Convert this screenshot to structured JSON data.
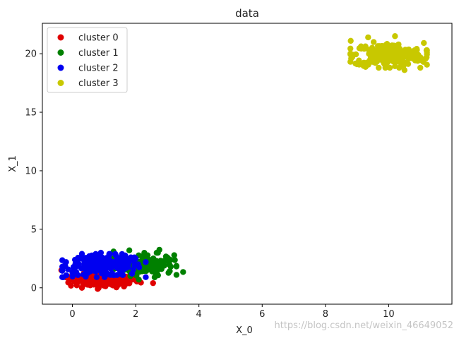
{
  "chart_data": {
    "type": "scatter",
    "title": "data",
    "xlabel": "X_0",
    "ylabel": "X_1",
    "xlim": [
      -0.95,
      12.0
    ],
    "ylim": [
      -1.4,
      22.6
    ],
    "xticks": [
      0,
      2,
      4,
      6,
      8,
      10
    ],
    "yticks": [
      0,
      5,
      10,
      15,
      20
    ],
    "grid": false,
    "legend_position": "top-left",
    "series": [
      {
        "name": "cluster 0",
        "color": "#e00000",
        "center": [
          1.0,
          0.6
        ],
        "spread": [
          0.55,
          0.28
        ],
        "count": 140,
        "x": [
          -0.35,
          2.55,
          0.3,
          1.6,
          0.8,
          1.2,
          0.1,
          1.9
        ],
        "y": [
          1.5,
          0.4,
          0.0,
          0.3,
          -0.1,
          0.9,
          1.2,
          0.7
        ]
      },
      {
        "name": "cluster 1",
        "color": "#008000",
        "center": [
          2.3,
          2.0
        ],
        "spread": [
          0.45,
          0.45
        ],
        "count": 140,
        "x": [
          3.5,
          1.8,
          2.9,
          2.6,
          1.3,
          2.1,
          2.75,
          3.0
        ],
        "y": [
          1.35,
          3.2,
          2.3,
          0.9,
          3.1,
          0.7,
          3.25,
          2.6
        ]
      },
      {
        "name": "cluster 2",
        "color": "#0000f0",
        "center": [
          1.0,
          1.9
        ],
        "spread": [
          0.6,
          0.45
        ],
        "count": 220,
        "x": [
          -0.3,
          -0.2,
          0.0,
          0.3,
          1.6,
          1.2,
          0.9,
          2.0
        ],
        "y": [
          0.9,
          2.2,
          1.3,
          2.9,
          2.8,
          1.1,
          3.0,
          2.5
        ]
      },
      {
        "name": "cluster 3",
        "color": "#c8c800",
        "center": [
          10.0,
          19.9
        ],
        "spread": [
          0.55,
          0.5
        ],
        "count": 240,
        "x": [
          8.8,
          9.0,
          9.35,
          10.2,
          11.0,
          11.2,
          11.1,
          10.5
        ],
        "y": [
          21.1,
          19.1,
          21.4,
          21.5,
          18.8,
          19.7,
          19.3,
          18.6
        ]
      }
    ]
  },
  "watermark": "https://blog.csdn.net/weixin_46649052"
}
